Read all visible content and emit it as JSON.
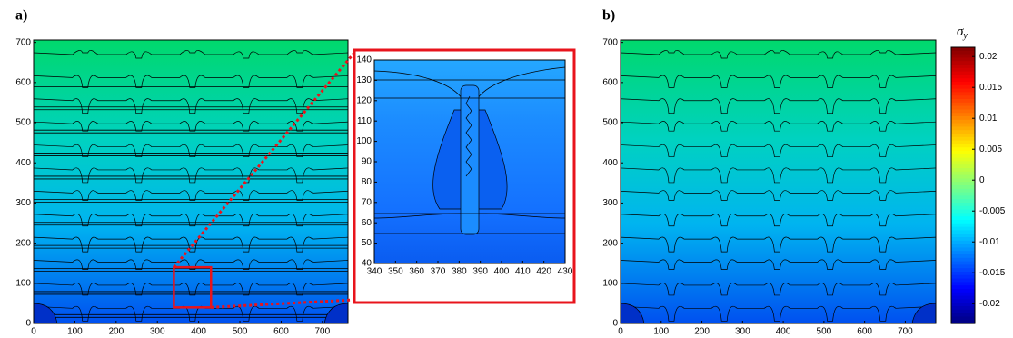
{
  "chart_data": [
    {
      "type": "contour",
      "label": "a)",
      "xlim": [
        0,
        762
      ],
      "ylim": [
        0,
        706
      ],
      "xticks": [
        0,
        100,
        200,
        300,
        400,
        500,
        600,
        700
      ],
      "yticks": [
        0,
        100,
        200,
        300,
        400,
        500,
        600,
        700
      ]
    },
    {
      "type": "contour",
      "xlim": [
        340,
        430
      ],
      "ylim": [
        40,
        140
      ],
      "xticks": [
        340,
        350,
        360,
        370,
        380,
        390,
        400,
        410,
        420,
        430
      ],
      "yticks": [
        40,
        50,
        60,
        70,
        80,
        90,
        100,
        110,
        120,
        130,
        140
      ]
    },
    {
      "type": "contour",
      "label": "b)",
      "xlim": [
        0,
        775
      ],
      "ylim": [
        0,
        706
      ],
      "xticks": [
        0,
        100,
        200,
        300,
        400,
        500,
        600,
        700
      ],
      "yticks": [
        0,
        100,
        200,
        300,
        400,
        500,
        600,
        700
      ]
    },
    {
      "type": "colorbar",
      "symbol": "σ",
      "subscript": "y",
      "ylim": [
        -0.0232,
        0.0215
      ],
      "yticks": [
        0.02,
        0.015,
        0.01,
        0.005,
        0,
        -0.005,
        -0.01,
        -0.015,
        -0.02
      ]
    }
  ]
}
